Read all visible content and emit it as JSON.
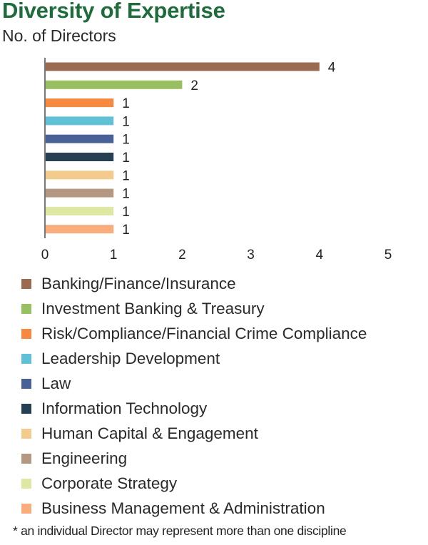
{
  "chart_data": {
    "type": "bar",
    "orientation": "horizontal",
    "title": "Diversity of Expertise",
    "subtitle": "No. of Directors",
    "xlim": [
      0,
      5
    ],
    "xticks": [
      "0",
      "1",
      "2",
      "3",
      "4",
      "5"
    ],
    "grid": false,
    "legend_position": "bottom",
    "categories": [
      "Banking/Finance/Insurance",
      "Investment Banking & Treasury",
      "Risk/Compliance/Financial Crime Compliance",
      "Leadership Development",
      "Law",
      "Information Technology",
      "Human Capital & Engagement",
      "Engineering",
      "Corporate Strategy",
      "Business Management & Administration"
    ],
    "values": [
      4,
      2,
      1,
      1,
      1,
      1,
      1,
      1,
      1,
      1
    ],
    "value_labels": [
      "4",
      "2",
      "1",
      "1",
      "1",
      "1",
      "1",
      "1",
      "1",
      "1"
    ],
    "colors": [
      "#9b6b51",
      "#99c060",
      "#f68840",
      "#5fc0d6",
      "#4a6198",
      "#263f52",
      "#f2cb8d",
      "#b49882",
      "#dfe8a3",
      "#f9ac7c"
    ]
  },
  "footnote": "* an individual Director may represent more than one discipline"
}
